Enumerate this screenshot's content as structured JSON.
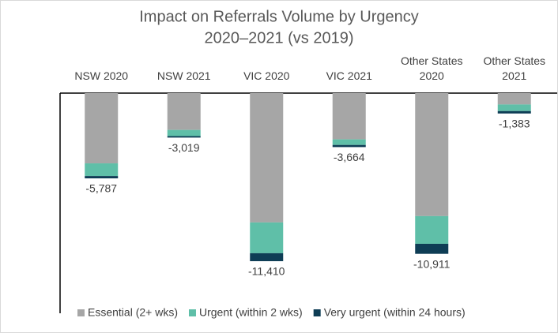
{
  "chart_data": {
    "type": "stacked_bar",
    "title": "Impact on Referrals Volume by Urgency",
    "subtitle": "2020–2021 (vs 2019)",
    "categories": [
      "NSW 2020",
      "NSW 2021",
      "VIC 2020",
      "VIC 2021",
      "Other States 2020",
      "Other States 2021"
    ],
    "series": [
      {
        "name": "Essential (2+ wks)",
        "color": "#a6a6a6",
        "values": [
          -4770,
          -2500,
          -8780,
          -3140,
          -8350,
          -770
        ]
      },
      {
        "name": "Urgent (within 2 wks)",
        "color": "#5fbfa8",
        "values": [
          -860,
          -420,
          -2090,
          -380,
          -1880,
          -450
        ]
      },
      {
        "name": "Very urgent (within 24 hours)",
        "color": "#0e3d55",
        "values": [
          -157,
          -99,
          -540,
          -144,
          -681,
          -163
        ]
      }
    ],
    "totals": [
      -5787,
      -3019,
      -11410,
      -3664,
      -10911,
      -1383
    ],
    "total_labels": [
      "-5,787",
      "-3,019",
      "-11,410",
      "-3,664",
      "-10,911",
      "-1,383"
    ],
    "ylim": [
      -15000,
      0
    ],
    "legend": "bottom"
  }
}
